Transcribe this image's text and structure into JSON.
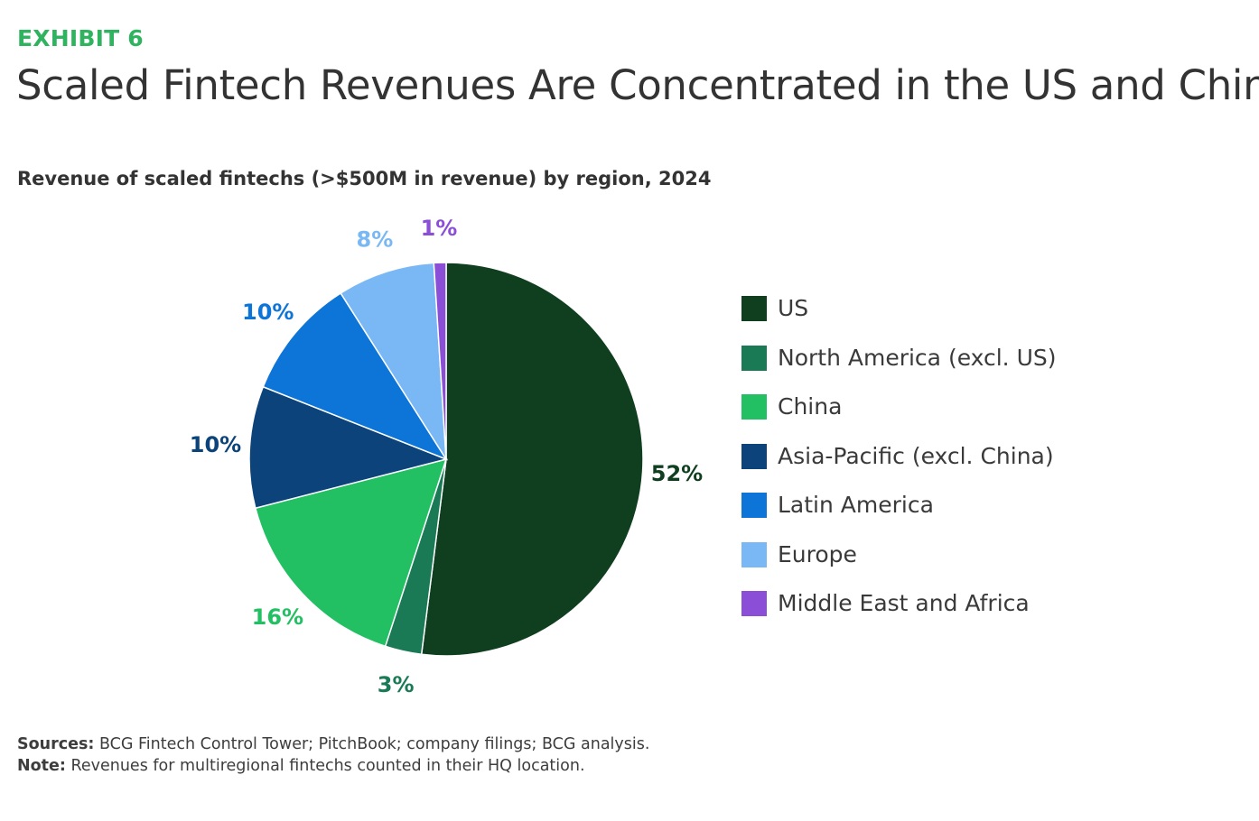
{
  "header": {
    "exhibit": "EXHIBIT 6",
    "title": "Scaled Fintech Revenues Are Concentrated in the US and China"
  },
  "chart_data": {
    "type": "pie",
    "title": "Revenue of scaled fintechs (>$500M in revenue) by region, 2024",
    "slices": [
      {
        "name": "US",
        "value": 52,
        "label": "52%",
        "color": "#0f3f1f"
      },
      {
        "name": "North America (excl. US)",
        "value": 3,
        "label": "3%",
        "color": "#1a7a55"
      },
      {
        "name": "China",
        "value": 16,
        "label": "16%",
        "color": "#22c063"
      },
      {
        "name": "Asia-Pacific (excl. China)",
        "value": 10,
        "label": "10%",
        "color": "#0b437a"
      },
      {
        "name": "Latin America",
        "value": 10,
        "label": "10%",
        "color": "#0d74d8"
      },
      {
        "name": "Europe",
        "value": 8,
        "label": "8%",
        "color": "#7ab8f5"
      },
      {
        "name": "Middle East and Africa",
        "value": 1,
        "label": "1%",
        "color": "#8a4fd6"
      }
    ],
    "legend_position": "right"
  },
  "footer": {
    "sources_label": "Sources:",
    "sources_text": "BCG Fintech Control Tower; PitchBook; company filings; BCG analysis.",
    "note_label": "Note:",
    "note_text": "Revenues for multiregional fintechs counted in their HQ location."
  }
}
